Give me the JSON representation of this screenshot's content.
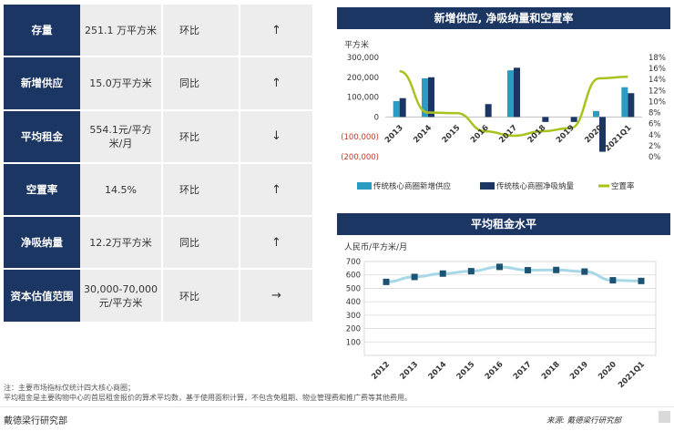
{
  "kpi_table": [
    {
      "label": "存量",
      "value": "251.1 万平方米",
      "comparison": "环比",
      "trend": "↑"
    },
    {
      "label": "新增供应",
      "value": "15.0万平方米",
      "comparison": "同比",
      "trend": "↑"
    },
    {
      "label": "平均租金",
      "value": "554.1元/平方米/月",
      "comparison": "环比",
      "trend": "↓"
    },
    {
      "label": "空置率",
      "value": "14.5%",
      "comparison": "环比",
      "trend": "↑"
    },
    {
      "label": "净吸纳量",
      "value": "12.2万平方米",
      "comparison": "同比",
      "trend": "↑"
    },
    {
      "label": "资本估值范围",
      "value": "30,000-70,000 元/平方米",
      "comparison": "环比",
      "trend": "→"
    }
  ],
  "chart_data": [
    {
      "type": "bar",
      "title": "新增供应, 净吸纳量和空置率",
      "ylabel": "平方米",
      "categories": [
        "2013",
        "2014",
        "2015",
        "2016",
        "2017",
        "2018",
        "2019",
        "2020",
        "2021Q1"
      ],
      "ylim": [
        -200000,
        300000
      ],
      "y_ticks": [
        "300,000",
        "200,000",
        "100,000",
        "0",
        "(100,000)",
        "(200,000)"
      ],
      "y2lim": [
        0,
        18
      ],
      "y2_ticks": [
        "18%",
        "16%",
        "14%",
        "12%",
        "10%",
        "8%",
        "6%",
        "4%",
        "2%",
        "0%"
      ],
      "series": [
        {
          "name": "传统核心商圈新增供应",
          "type": "bar",
          "color": "#2b9cc1",
          "values": [
            80000,
            195000,
            0,
            0,
            235000,
            0,
            0,
            30000,
            150000
          ]
        },
        {
          "name": "传统核心商圈净吸纳量",
          "type": "bar",
          "color": "#1c3663",
          "values": [
            95000,
            200000,
            0,
            65000,
            248000,
            -25000,
            -25000,
            -175000,
            120000
          ]
        },
        {
          "name": "空置率",
          "type": "line",
          "axis": "right",
          "color": "#a9c21e",
          "values": [
            15.5,
            8.0,
            7.9,
            4.6,
            3.8,
            4.6,
            5.2,
            14.2,
            14.5
          ]
        }
      ],
      "legend_position": "bottom"
    },
    {
      "type": "line",
      "title": "平均租金水平",
      "ylabel": "人民币/平方米/月",
      "categories": [
        "2012",
        "2013",
        "2014",
        "2015",
        "2016",
        "2017",
        "2018",
        "2019",
        "2020",
        "2021Q1"
      ],
      "ylim": [
        0,
        700
      ],
      "y_ticks": [
        "700",
        "600",
        "500",
        "400",
        "300",
        "200",
        "100"
      ],
      "grid": true,
      "series": [
        {
          "color": "#1c5272",
          "values": [
            548,
            585,
            610,
            628,
            660,
            635,
            637,
            625,
            560,
            555
          ]
        }
      ]
    }
  ],
  "notes": {
    "line1": "注：主要市场指标仅统计四大核心商圈；",
    "line2": "平均租金是主要购物中心的首层租金报价的算术平均数，基于使用面积计算，不包含免租期、物业管理费和推广费等其他费用。"
  },
  "footer": {
    "left": "戴德梁行研究部",
    "source": "来源: 戴德梁行研究部"
  }
}
